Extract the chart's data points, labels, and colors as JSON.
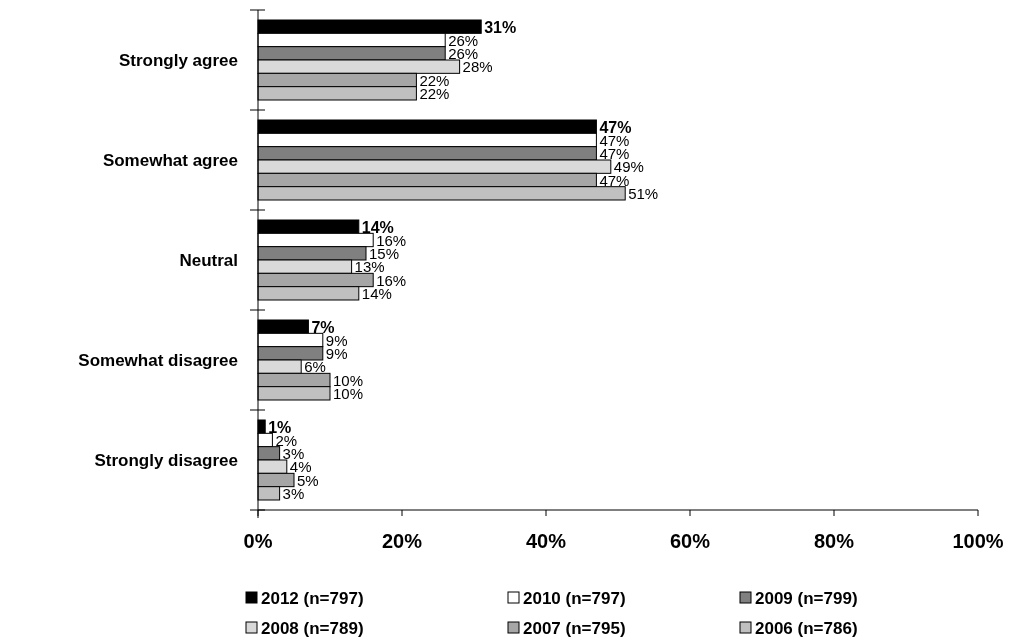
{
  "chart_data": {
    "type": "bar",
    "orientation": "horizontal",
    "categories": [
      "Strongly agree",
      "Somewhat agree",
      "Neutral",
      "Somewhat disagree",
      "Strongly disagree"
    ],
    "series": [
      {
        "name": "2012 (n=797)",
        "color": "#000000",
        "values": [
          31,
          47,
          14,
          7,
          1
        ],
        "value_labels": [
          "31%",
          "47%",
          "14%",
          "7%",
          "1%"
        ]
      },
      {
        "name": "2010 (n=797)",
        "color": "#ffffff",
        "values": [
          26,
          47,
          16,
          9,
          2
        ],
        "value_labels": [
          "26%",
          "47%",
          "16%",
          "9%",
          "2%"
        ]
      },
      {
        "name": "2009 (n=799)",
        "color": "#808080",
        "values": [
          26,
          47,
          15,
          9,
          3
        ],
        "value_labels": [
          "26%",
          "47%",
          "15%",
          "9%",
          "3%"
        ]
      },
      {
        "name": "2008 (n=789)",
        "color": "#d9d9d9",
        "values": [
          28,
          49,
          13,
          6,
          4
        ],
        "value_labels": [
          "28%",
          "49%",
          "13%",
          "6%",
          "4%"
        ]
      },
      {
        "name": "2007 (n=795)",
        "color": "#a6a6a6",
        "values": [
          22,
          47,
          16,
          10,
          5
        ],
        "value_labels": [
          "22%",
          "47%",
          "16%",
          "10%",
          "5%"
        ]
      },
      {
        "name": "2006 (n=786)",
        "color": "#c0c0c0",
        "values": [
          22,
          51,
          14,
          10,
          3
        ],
        "value_labels": [
          "22%",
          "51%",
          "14%",
          "10%",
          "3%"
        ]
      }
    ],
    "xlim": [
      0,
      100
    ],
    "xticks": [
      {
        "value": 0,
        "label": "0%"
      },
      {
        "value": 20,
        "label": "20%"
      },
      {
        "value": 40,
        "label": "40%"
      },
      {
        "value": 60,
        "label": "60%"
      },
      {
        "value": 80,
        "label": "80%"
      },
      {
        "value": 100,
        "label": "100%"
      }
    ],
    "grid": false,
    "legend": "bottom"
  }
}
